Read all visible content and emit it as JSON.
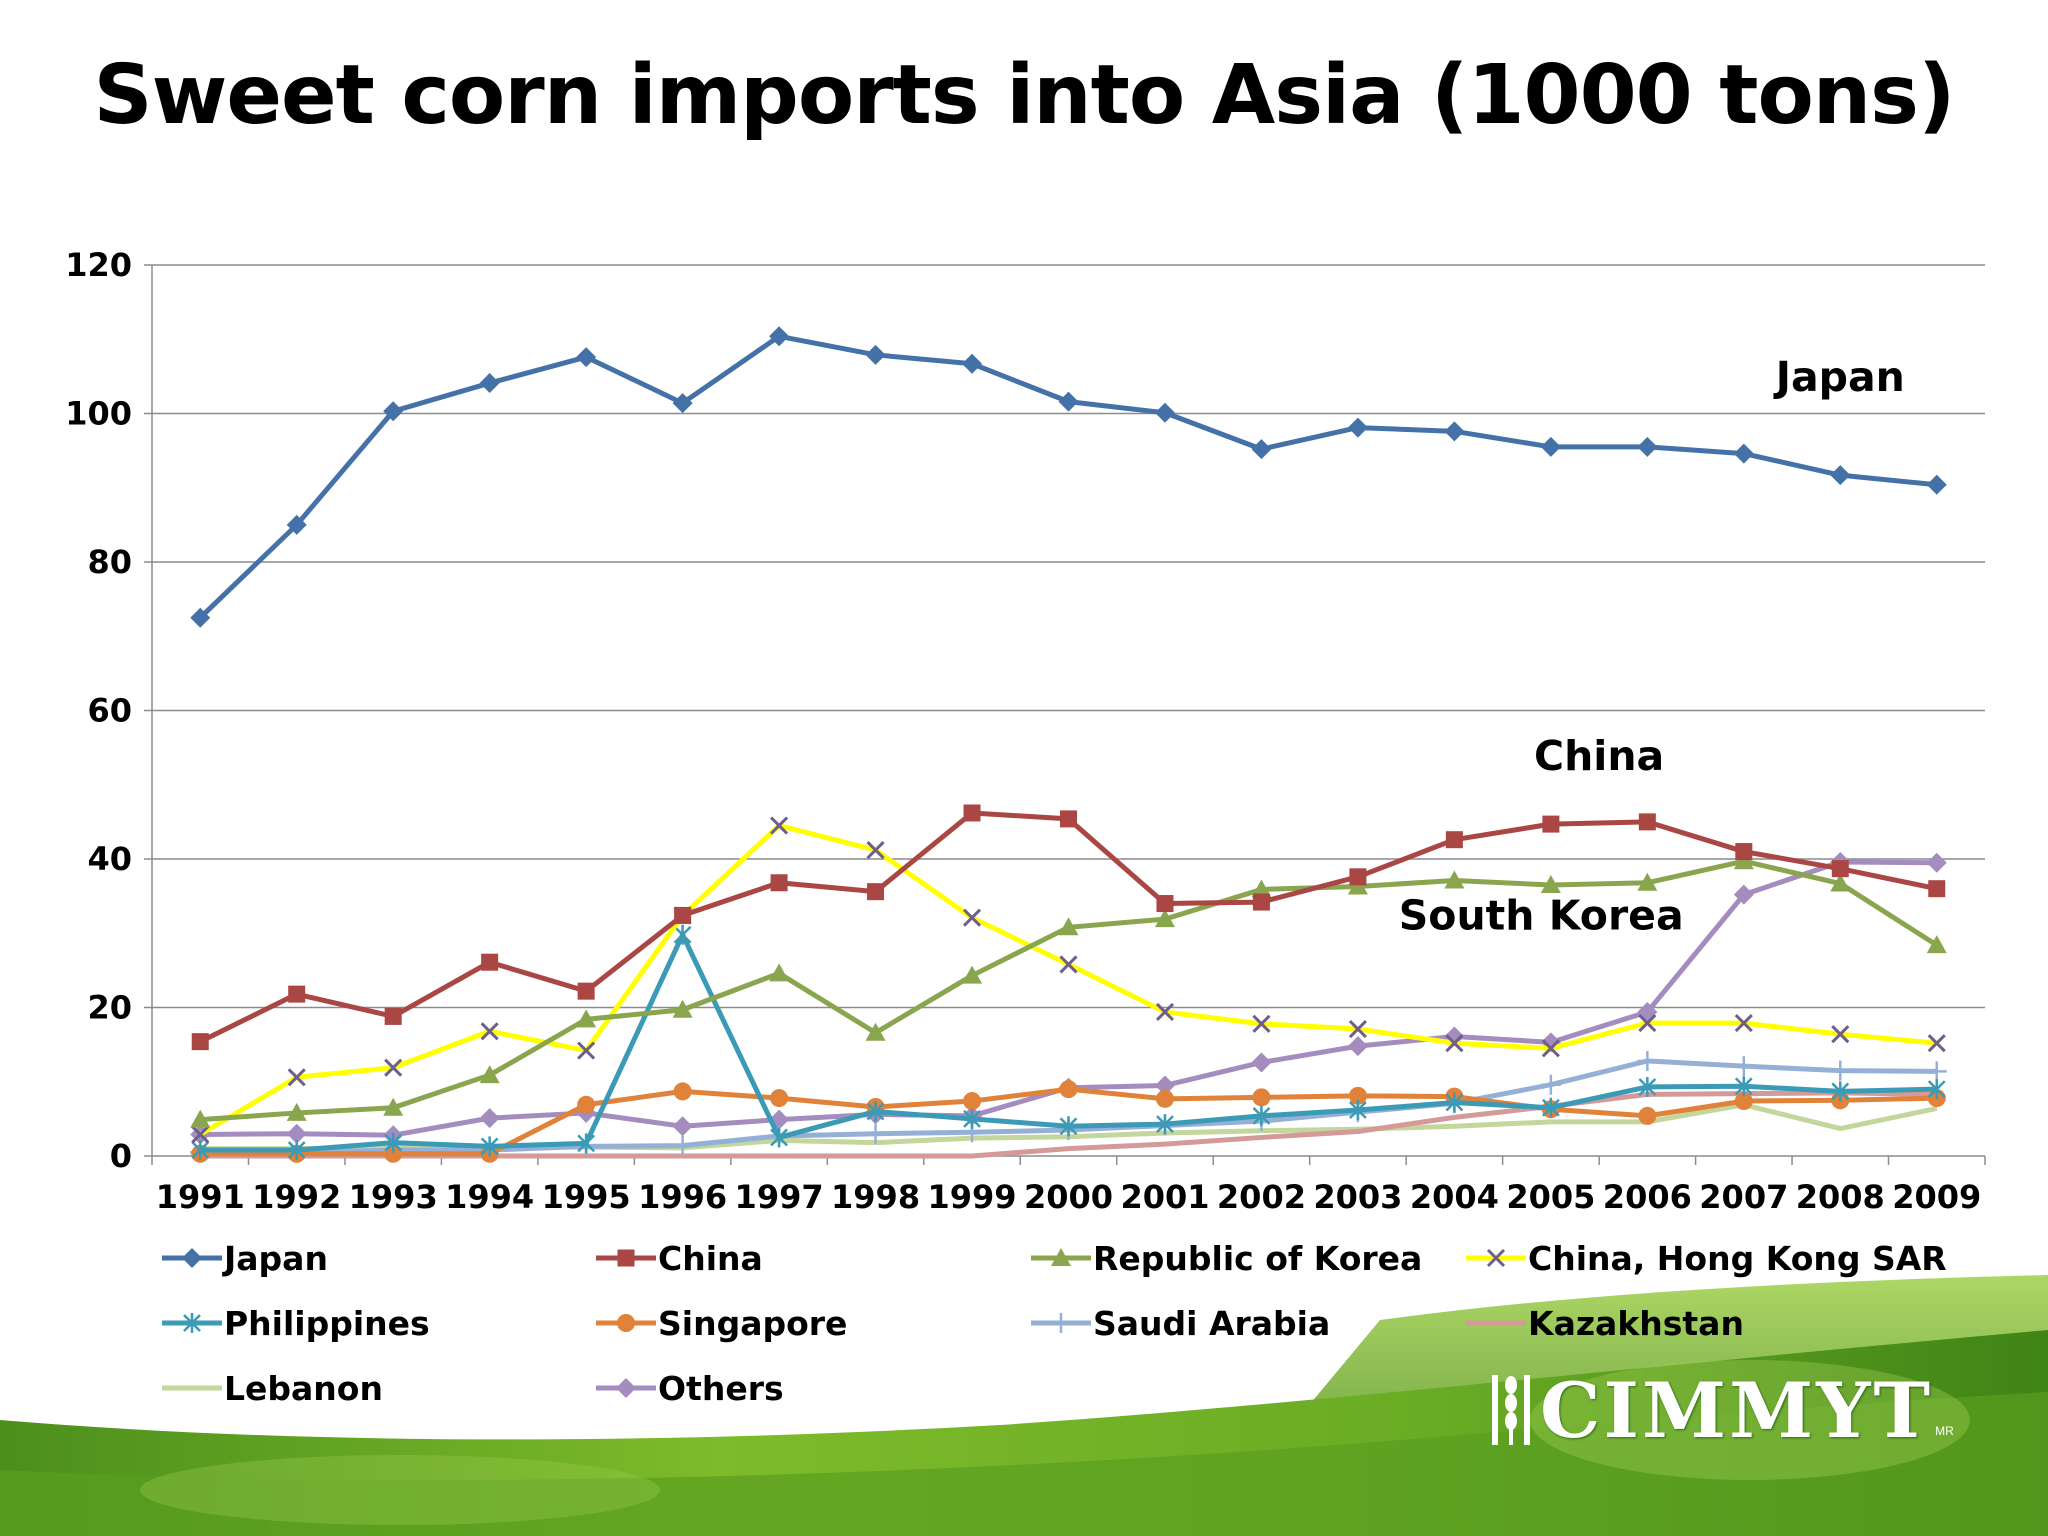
{
  "title": "Sweet corn imports into Asia (1000 tons)",
  "logo_text": "CIMMYT",
  "logo_sup": "MR",
  "chart_data": {
    "type": "line",
    "title": "Sweet corn imports into Asia (1000 tons)",
    "xlabel": "",
    "ylabel": "",
    "ylim": [
      0,
      120
    ],
    "yticks": [
      0,
      20,
      40,
      60,
      80,
      100,
      120
    ],
    "grid": true,
    "legend_position": "bottom",
    "categories": [
      "1991",
      "1992",
      "1993",
      "1994",
      "1995",
      "1996",
      "1997",
      "1998",
      "1999",
      "2000",
      "2001",
      "2002",
      "2003",
      "2004",
      "2005",
      "2006",
      "2007",
      "2008",
      "2009"
    ],
    "series": [
      {
        "name": "Japan",
        "color": "#4472A8",
        "marker": "diamond",
        "values": [
          72.5,
          85,
          100.3,
          104.1,
          107.6,
          101.4,
          110.4,
          107.9,
          106.7,
          101.6,
          100.1,
          95.2,
          98.1,
          97.6,
          95.5,
          95.5,
          94.6,
          91.7,
          90.4
        ]
      },
      {
        "name": "China",
        "color": "#AA4643",
        "marker": "square",
        "values": [
          15.4,
          21.8,
          18.8,
          26.1,
          22.2,
          32.4,
          36.8,
          35.6,
          46.2,
          45.4,
          34,
          34.2,
          37.6,
          42.6,
          44.7,
          45,
          41,
          38.7,
          36
        ]
      },
      {
        "name": "Republic of Korea",
        "color": "#89A54E",
        "marker": "triangle",
        "values": [
          4.9,
          5.8,
          6.5,
          10.9,
          18.4,
          19.7,
          24.6,
          16.6,
          24.3,
          30.8,
          31.9,
          35.9,
          36.3,
          37.1,
          36.5,
          36.8,
          39.7,
          36.7,
          28.4
        ]
      },
      {
        "name": "China, Hong Kong SAR",
        "color": "#FFFF00",
        "marker": "x",
        "marker_color": "#6E5E8C",
        "values": [
          2.9,
          10.6,
          11.9,
          16.8,
          14.2,
          32.4,
          44.5,
          41.2,
          32.1,
          25.8,
          19.4,
          17.8,
          17.1,
          15.2,
          14.5,
          17.9,
          17.9,
          16.4,
          15.2
        ]
      },
      {
        "name": "Philippines",
        "color": "#3B9AB5",
        "marker": "asterisk",
        "values": [
          0.8,
          0.8,
          1.8,
          1.3,
          1.7,
          29.8,
          2.5,
          6,
          5,
          4,
          4.3,
          5.4,
          6.2,
          7.2,
          6.5,
          9.3,
          9.4,
          8.7,
          9
        ]
      },
      {
        "name": "Singapore",
        "color": "#E0823A",
        "marker": "circle",
        "values": [
          0.3,
          0.3,
          0.3,
          0.3,
          6.9,
          8.7,
          7.8,
          6.6,
          7.4,
          9,
          7.7,
          7.9,
          8.1,
          8,
          6.3,
          5.4,
          7.4,
          7.5,
          7.8
        ]
      },
      {
        "name": "Saudi Arabia",
        "color": "#95B0D6",
        "marker": "plus",
        "values": [
          0.5,
          0.5,
          0.8,
          0.8,
          1.3,
          1.4,
          2.7,
          3,
          3.2,
          3.5,
          4.1,
          4.7,
          5.9,
          7.1,
          9.6,
          12.8,
          12.1,
          11.5,
          11.4
        ]
      },
      {
        "name": "Kazakhstan",
        "color": "#D49A9A",
        "marker": "none",
        "values": [
          0,
          0,
          0,
          0,
          0,
          0,
          0,
          0,
          0,
          1,
          1.6,
          2.5,
          3.3,
          5.2,
          6.7,
          8.3,
          8.4,
          8.5,
          8.3
        ]
      },
      {
        "name": "Lebanon",
        "color": "#C3D69B",
        "marker": "none",
        "values": [
          1,
          1,
          1.1,
          1.2,
          1.2,
          1.1,
          2.1,
          1.8,
          2.4,
          2.6,
          3.1,
          3.4,
          3.6,
          4,
          4.6,
          4.6,
          6.9,
          3.7,
          6.4
        ]
      },
      {
        "name": "Others",
        "color": "#A48CBF",
        "marker": "diamond",
        "values": [
          2.9,
          3,
          2.8,
          5.1,
          5.8,
          4,
          4.9,
          5.6,
          5.4,
          9.2,
          9.5,
          12.6,
          14.8,
          16.1,
          15.3,
          19.4,
          35.2,
          39.6,
          39.5
        ]
      }
    ],
    "annotations": [
      {
        "text": "Japan",
        "x": "2008",
        "y": 103
      },
      {
        "text": "China",
        "x": "2005.5",
        "y": 52
      },
      {
        "text": "South Korea",
        "x": "2004.9",
        "y": 30.5
      }
    ]
  }
}
